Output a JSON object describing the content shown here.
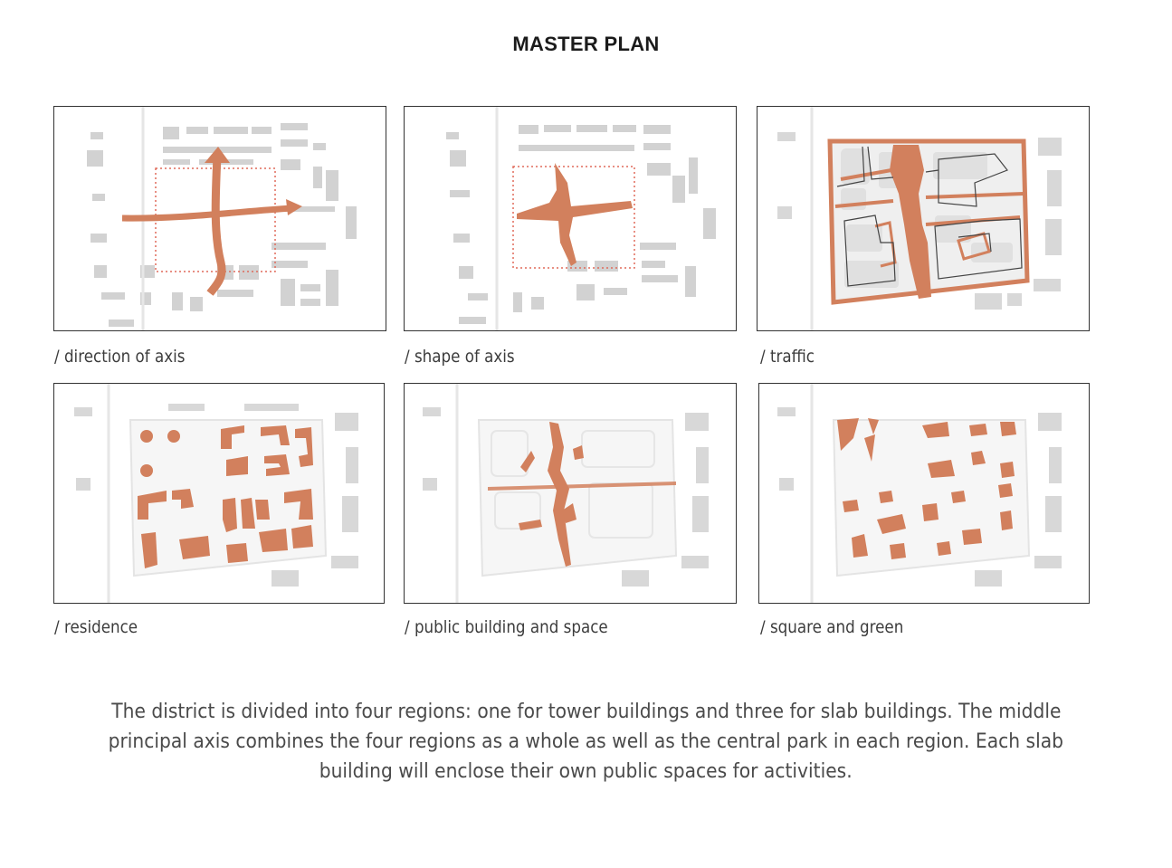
{
  "title": "MASTER PLAN",
  "colors": {
    "accent": "#d2805d",
    "building": "#cfcfcf",
    "frame": "#333333"
  },
  "panels": [
    {
      "caption": "/ direction of axis"
    },
    {
      "caption": "/ shape of axis"
    },
    {
      "caption": "/ traffic"
    },
    {
      "caption": "/ residence"
    },
    {
      "caption": "/ public building and space"
    },
    {
      "caption": "/ square and green"
    }
  ],
  "description": {
    "lines": [
      "The district is divided into four regions: one for tower buildings and three for slab buildings. The middle",
      "principal axis combines the four regions as a whole as well as the central park in each region. Each slab",
      "building will enclose their own public spaces for activities."
    ]
  }
}
